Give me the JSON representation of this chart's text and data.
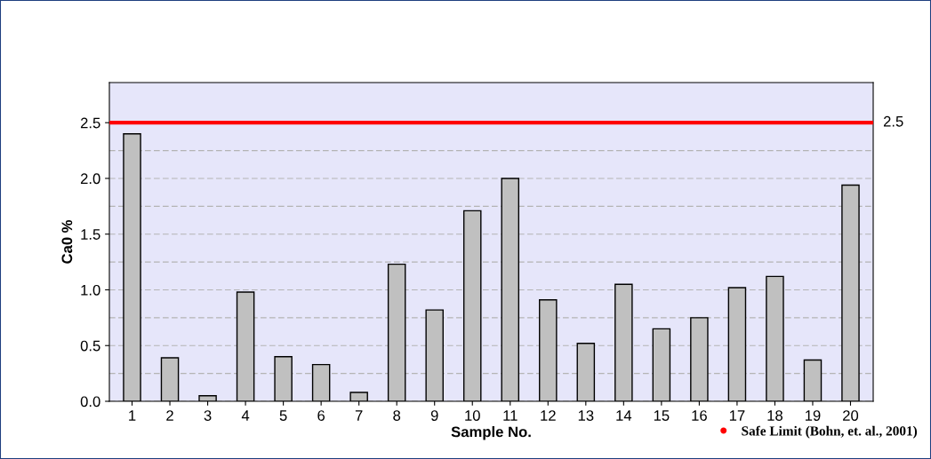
{
  "chart_data": {
    "type": "bar",
    "xlabel": "Sample No.",
    "ylabel": "Ca0 %",
    "categories": [
      "1",
      "2",
      "3",
      "4",
      "5",
      "6",
      "7",
      "8",
      "9",
      "10",
      "11",
      "12",
      "13",
      "14",
      "15",
      "16",
      "17",
      "18",
      "19",
      "20"
    ],
    "values": [
      2.4,
      0.39,
      0.05,
      0.98,
      0.4,
      0.33,
      0.08,
      1.23,
      0.82,
      1.71,
      2.0,
      0.91,
      0.52,
      1.05,
      0.65,
      0.75,
      1.02,
      1.12,
      0.37,
      1.94
    ],
    "color": "#c0c0c0",
    "ylim": [
      0,
      2.86
    ],
    "yticks": [
      {
        "value": 0,
        "label": "0.0"
      },
      {
        "value": 0.25,
        "label": null
      },
      {
        "value": 0.5,
        "label": "0.5"
      },
      {
        "value": 0.75,
        "label": null
      },
      {
        "value": 1.0,
        "label": "1.0"
      },
      {
        "value": 1.25,
        "label": null
      },
      {
        "value": 1.5,
        "label": "1.5"
      },
      {
        "value": 1.75,
        "label": null
      },
      {
        "value": 2.0,
        "label": "2.0"
      },
      {
        "value": 2.25,
        "label": null
      },
      {
        "value": 2.5,
        "label": "2.5"
      }
    ],
    "annotations": [
      "2.5"
    ],
    "ref_lines": [
      {
        "axis": "y",
        "value": 2.5,
        "label": "Safe Limit (Bohn, et. al., 2001)",
        "color": "#ff0000"
      }
    ],
    "grid": "y",
    "legend": "bottom right"
  }
}
